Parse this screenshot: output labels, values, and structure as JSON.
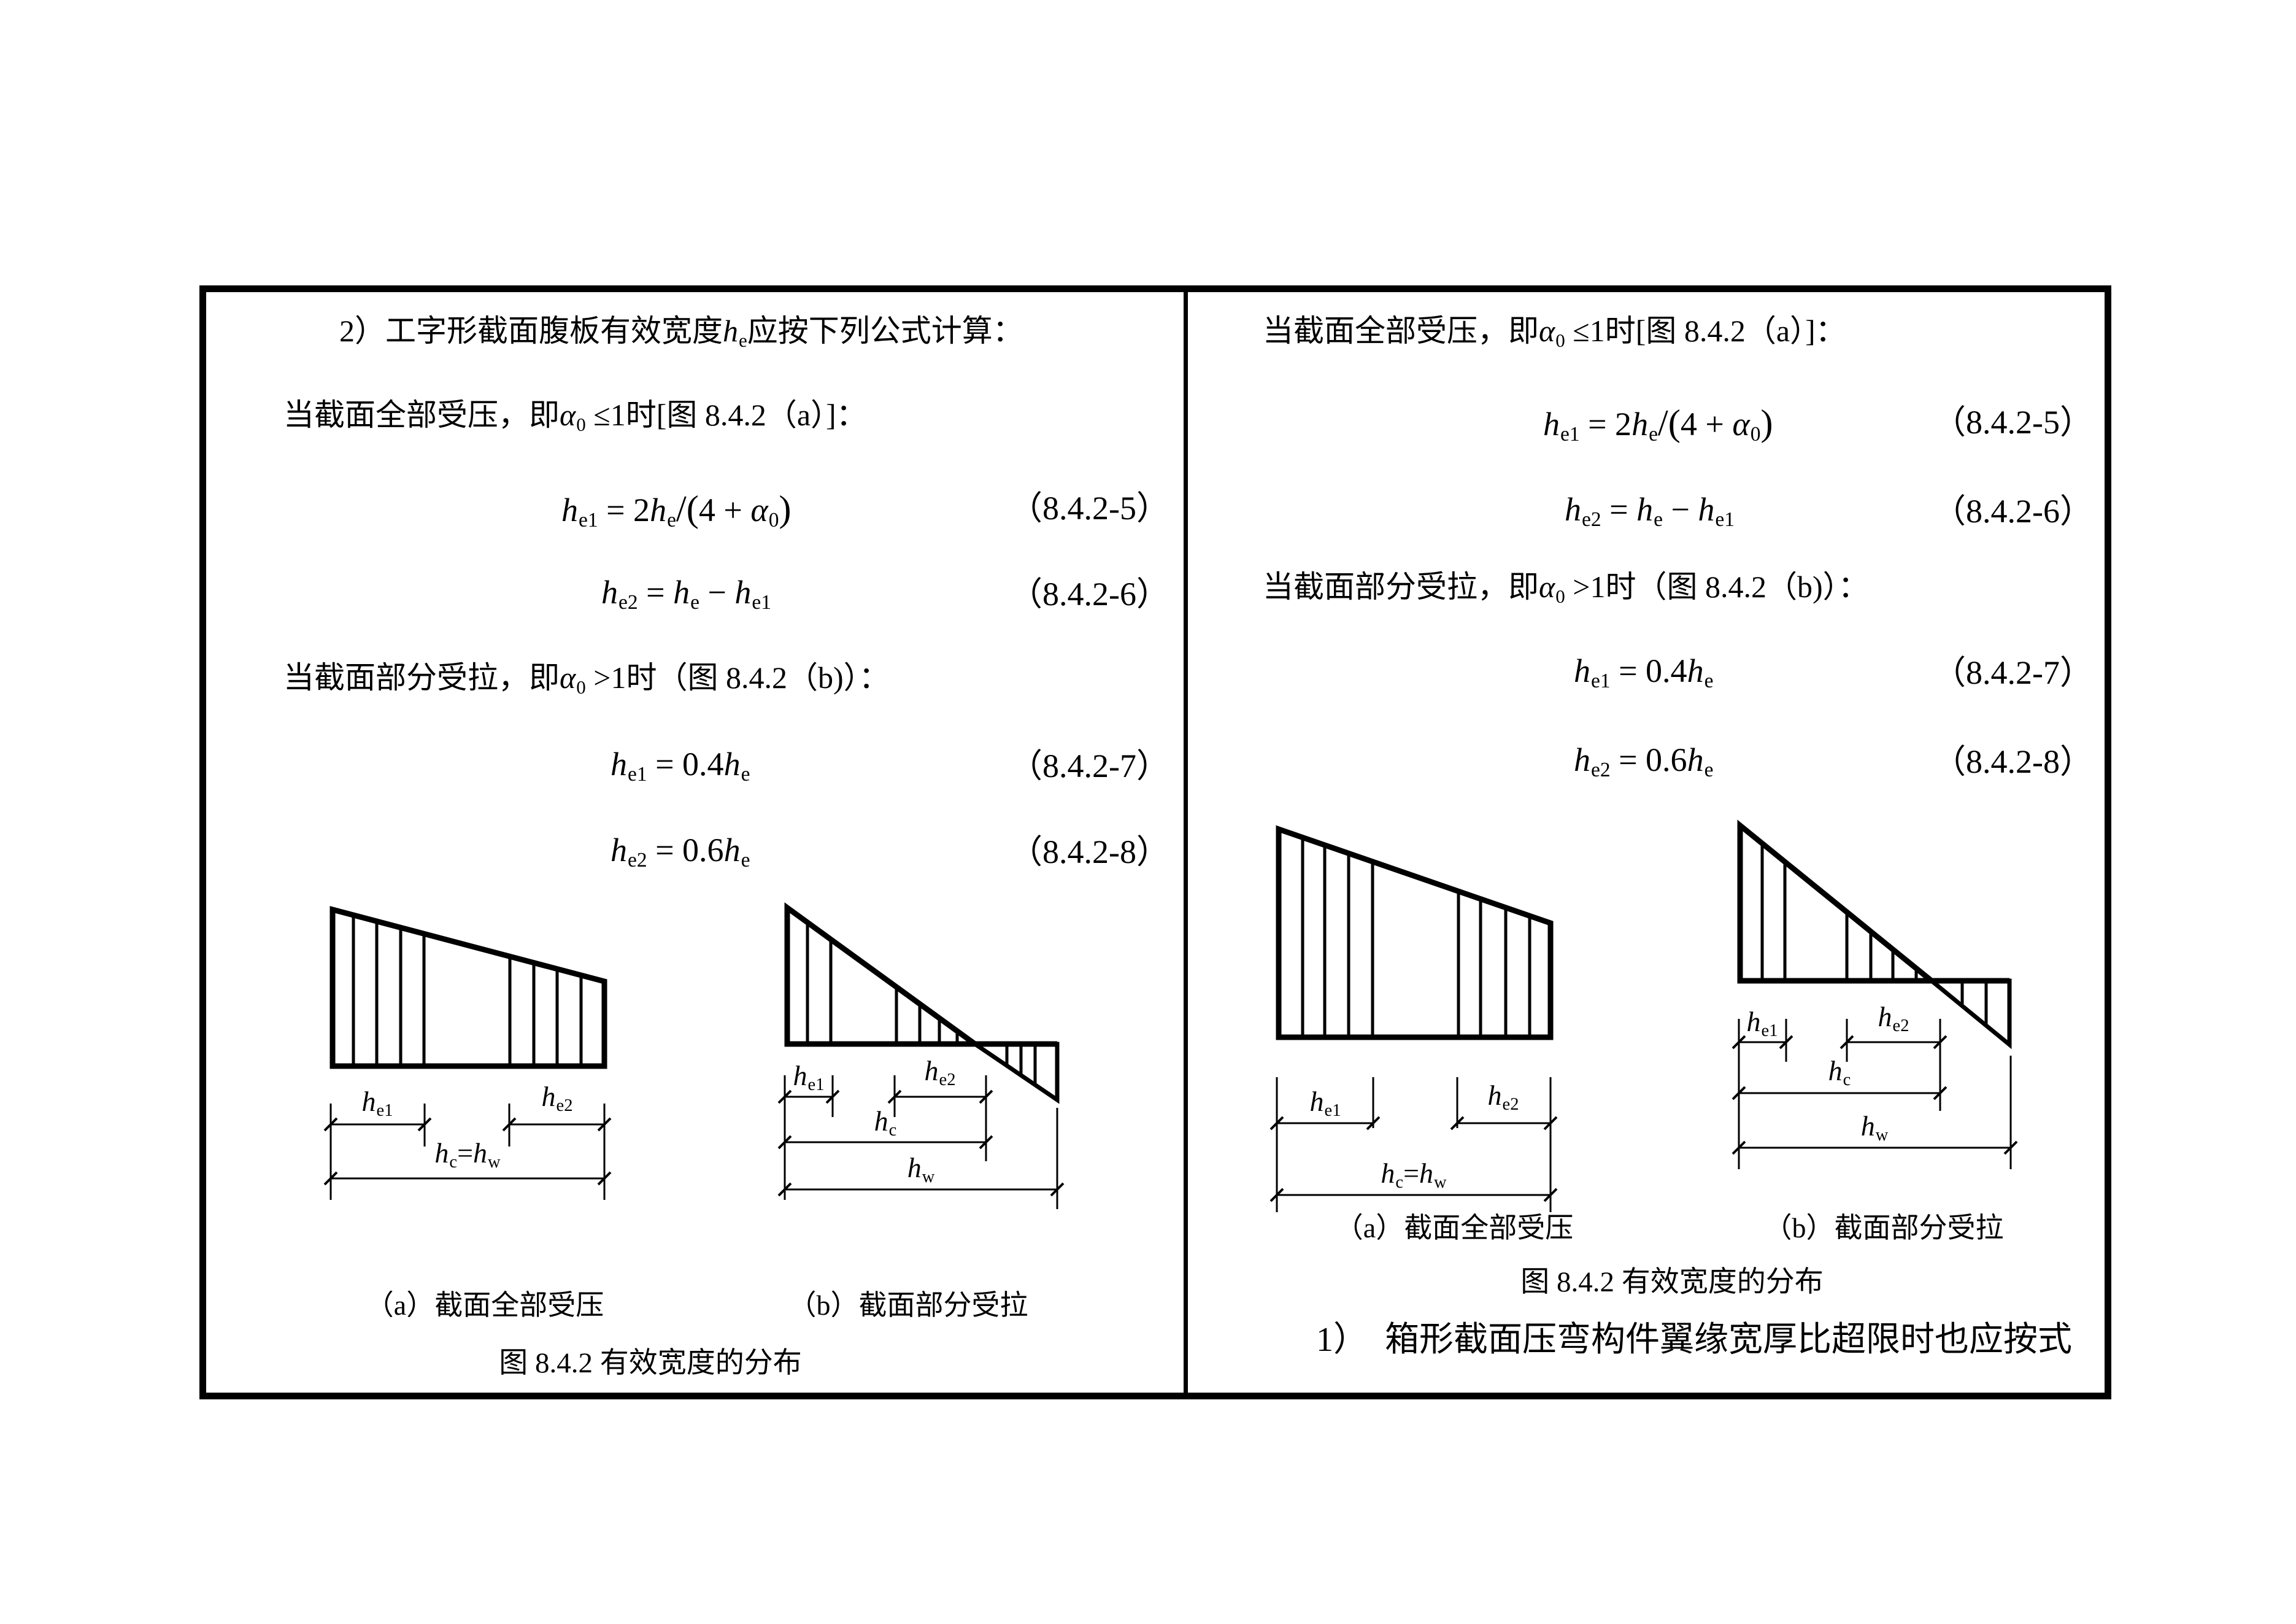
{
  "colors": {
    "ink": "#000000",
    "paper": "#ffffff"
  },
  "left_panel": {
    "heading": [
      [
        "2）工字形截面腹板有效宽度",
        ""
      ],
      [
        "h",
        "i"
      ],
      [
        "e",
        "sub"
      ],
      [
        "应按下列公式计算：",
        ""
      ]
    ],
    "full_compression": [
      [
        "当截面全部受压，即",
        ""
      ],
      [
        "α",
        "i"
      ],
      [
        "0",
        "sub"
      ],
      [
        " ≤1时[图 8.4.2（a）]：",
        ""
      ]
    ],
    "partial_tension": [
      [
        "当截面部分受拉，即",
        ""
      ],
      [
        "α",
        "i"
      ],
      [
        "0",
        "sub"
      ],
      [
        " >1时（图 8.4.2（b)）：",
        ""
      ]
    ],
    "eq5": {
      "formula": [
        [
          "h",
          "i"
        ],
        [
          "e1",
          "sub"
        ],
        [
          " = 2",
          ""
        ],
        [
          "h",
          "i"
        ],
        [
          "e",
          "sub"
        ],
        [
          "/(",
          "big"
        ],
        [
          "4 + ",
          ""
        ],
        [
          "α",
          "i"
        ],
        [
          "0",
          "sub"
        ],
        [
          ")",
          "big"
        ]
      ],
      "number": "（8.4.2-5）"
    },
    "eq6": {
      "formula": [
        [
          "h",
          "i"
        ],
        [
          "e2",
          "sub"
        ],
        [
          " = ",
          ""
        ],
        [
          "h",
          "i"
        ],
        [
          "e",
          "sub"
        ],
        [
          " − ",
          ""
        ],
        [
          "h",
          "i"
        ],
        [
          "e1",
          "sub"
        ]
      ],
      "number": "（8.4.2-6）"
    },
    "eq7": {
      "formula": [
        [
          "h",
          "i"
        ],
        [
          "e1",
          "sub"
        ],
        [
          " = 0.4",
          ""
        ],
        [
          "h",
          "i"
        ],
        [
          "e",
          "sub"
        ]
      ],
      "number": "（8.4.2-7）"
    },
    "eq8": {
      "formula": [
        [
          "h",
          "i"
        ],
        [
          "e2",
          "sub"
        ],
        [
          " = 0.6",
          ""
        ],
        [
          "h",
          "i"
        ],
        [
          "e",
          "sub"
        ]
      ],
      "number": "（8.4.2-8）"
    },
    "diagram_a": {
      "caption": "（a）截面全部受压",
      "label_he1": [
        [
          "h",
          "i"
        ],
        [
          "e1",
          "sub"
        ]
      ],
      "label_he2": [
        [
          "h",
          "i"
        ],
        [
          "e2",
          "sub"
        ]
      ],
      "label_hc_hw": [
        [
          "h",
          "i"
        ],
        [
          "c",
          "sub"
        ],
        [
          "=",
          ""
        ],
        [
          "h",
          "i"
        ],
        [
          "w",
          "sub"
        ]
      ]
    },
    "diagram_b": {
      "caption": "（b）截面部分受拉",
      "label_he1": [
        [
          "h",
          "i"
        ],
        [
          "e1",
          "sub"
        ]
      ],
      "label_he2": [
        [
          "h",
          "i"
        ],
        [
          "e2",
          "sub"
        ]
      ],
      "label_hc": [
        [
          "h",
          "i"
        ],
        [
          "c",
          "sub"
        ]
      ],
      "label_hw": [
        [
          "h",
          "i"
        ],
        [
          "w",
          "sub"
        ]
      ]
    },
    "figure_caption": "图 8.4.2 有效宽度的分布"
  },
  "right_panel": {
    "full_compression": [
      [
        "当截面全部受压，即",
        ""
      ],
      [
        "α",
        "i"
      ],
      [
        "0",
        "sub"
      ],
      [
        " ≤1时[图 8.4.2（a）]：",
        ""
      ]
    ],
    "partial_tension": [
      [
        "当截面部分受拉，即",
        ""
      ],
      [
        "α",
        "i"
      ],
      [
        "0",
        "sub"
      ],
      [
        " >1时（图 8.4.2（b)）：",
        ""
      ]
    ],
    "eq5": {
      "formula": [
        [
          "h",
          "i"
        ],
        [
          "e1",
          "sub"
        ],
        [
          " = 2",
          ""
        ],
        [
          "h",
          "i"
        ],
        [
          "e",
          "sub"
        ],
        [
          "/(",
          "big"
        ],
        [
          "4 + ",
          ""
        ],
        [
          "α",
          "i"
        ],
        [
          "0",
          "sub"
        ],
        [
          ")",
          "big"
        ]
      ],
      "number": "（8.4.2-5）"
    },
    "eq6": {
      "formula": [
        [
          "h",
          "i"
        ],
        [
          "e2",
          "sub"
        ],
        [
          " = ",
          ""
        ],
        [
          "h",
          "i"
        ],
        [
          "e",
          "sub"
        ],
        [
          " − ",
          ""
        ],
        [
          "h",
          "i"
        ],
        [
          "e1",
          "sub"
        ]
      ],
      "number": "（8.4.2-6）"
    },
    "eq7": {
      "formula": [
        [
          "h",
          "i"
        ],
        [
          "e1",
          "sub"
        ],
        [
          " = 0.4",
          ""
        ],
        [
          "h",
          "i"
        ],
        [
          "e",
          "sub"
        ]
      ],
      "number": "（8.4.2-7）"
    },
    "eq8": {
      "formula": [
        [
          "h",
          "i"
        ],
        [
          "e2",
          "sub"
        ],
        [
          " = 0.6",
          ""
        ],
        [
          "h",
          "i"
        ],
        [
          "e",
          "sub"
        ]
      ],
      "number": "（8.4.2-8）"
    },
    "diagram_a": {
      "caption": "（a）截面全部受压",
      "label_he1": [
        [
          "h",
          "i"
        ],
        [
          "e1",
          "sub"
        ]
      ],
      "label_he2": [
        [
          "h",
          "i"
        ],
        [
          "e2",
          "sub"
        ]
      ],
      "label_hc_hw": [
        [
          "h",
          "i"
        ],
        [
          "c",
          "sub"
        ],
        [
          "=",
          ""
        ],
        [
          "h",
          "i"
        ],
        [
          "w",
          "sub"
        ]
      ]
    },
    "diagram_b": {
      "caption": "（b）截面部分受拉",
      "label_he1": [
        [
          "h",
          "i"
        ],
        [
          "e1",
          "sub"
        ]
      ],
      "label_he2": [
        [
          "h",
          "i"
        ],
        [
          "e2",
          "sub"
        ]
      ],
      "label_hc": [
        [
          "h",
          "i"
        ],
        [
          "c",
          "sub"
        ]
      ],
      "label_hw": [
        [
          "h",
          "i"
        ],
        [
          "w",
          "sub"
        ]
      ]
    },
    "figure_caption": "图 8.4.2 有效宽度的分布",
    "item1": "1）　箱形截面压弯构件翼缘宽厚比超限时也应按式"
  }
}
